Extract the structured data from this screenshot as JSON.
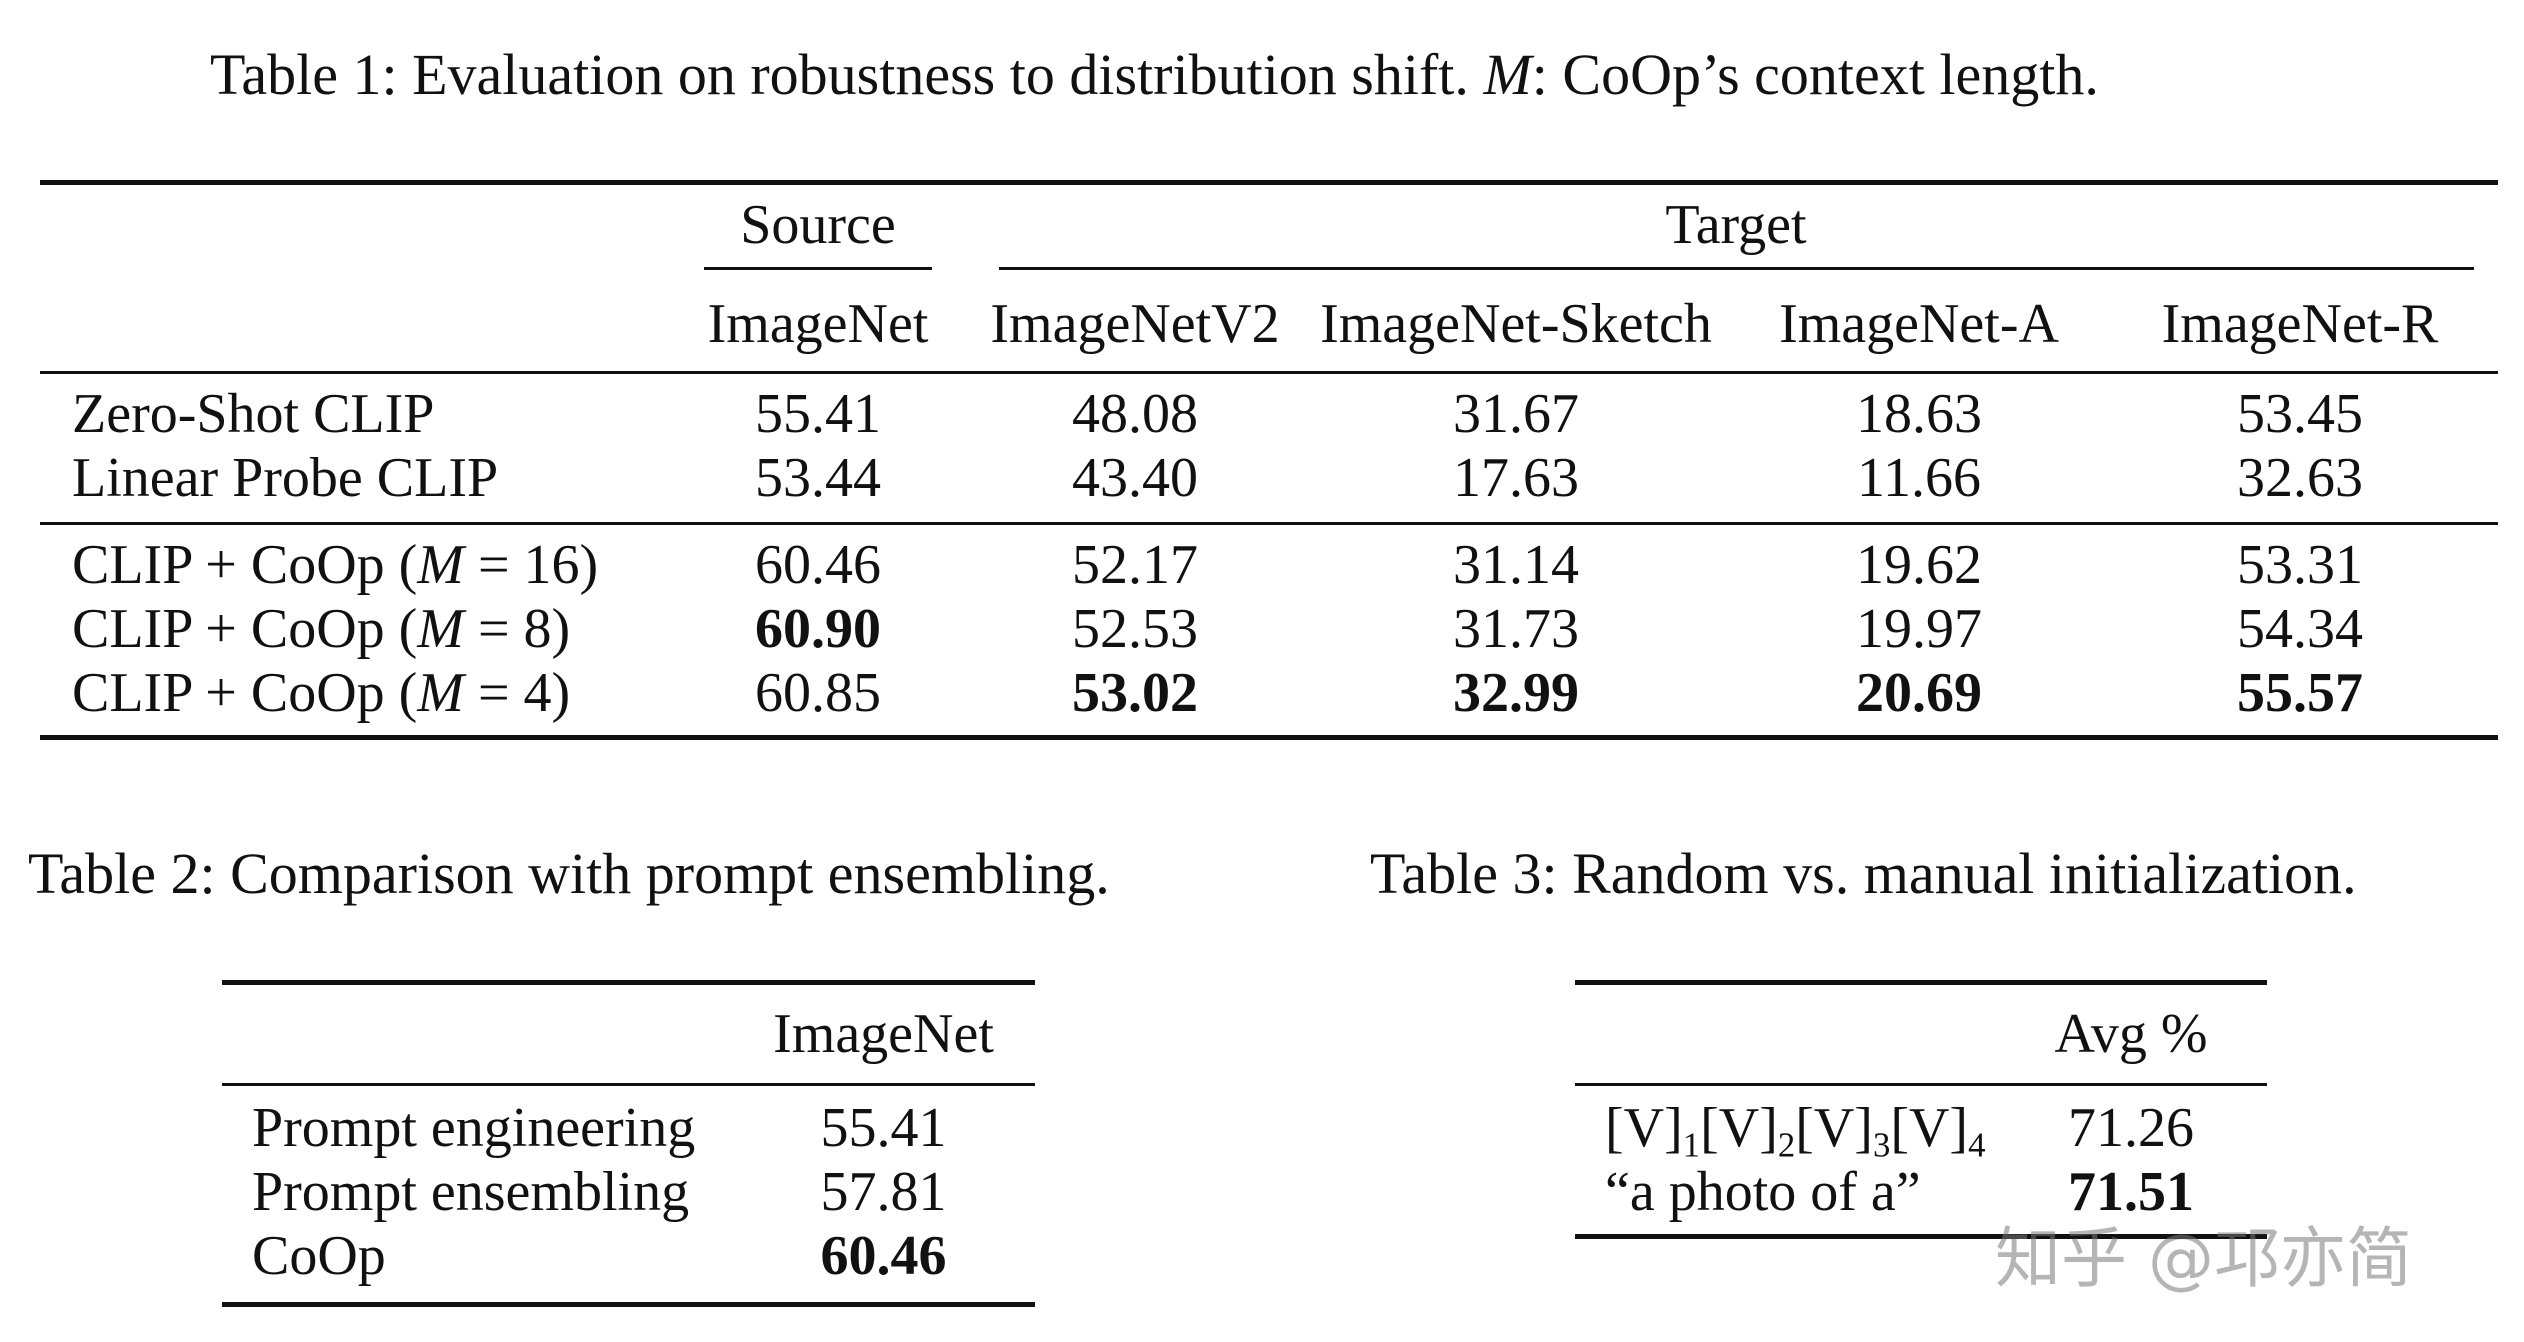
{
  "table1": {
    "caption_prefix": "Table 1: Evaluation on robustness to distribution shift. ",
    "caption_var": "M",
    "caption_suffix": ": CoOp’s context length.",
    "group_source": "Source",
    "group_target": "Target",
    "columns": [
      "ImageNet",
      "ImageNetV2",
      "ImageNet-Sketch",
      "ImageNet-A",
      "ImageNet-R"
    ],
    "rows": [
      {
        "pre": "Zero-Shot CLIP",
        "var": "",
        "post": "",
        "values": [
          "55.41",
          "48.08",
          "31.67",
          "18.63",
          "53.45"
        ]
      },
      {
        "pre": "Linear Probe CLIP",
        "var": "",
        "post": "",
        "values": [
          "53.44",
          "43.40",
          "17.63",
          "11.66",
          "32.63"
        ]
      },
      {
        "pre": "CLIP + CoOp (",
        "var": "M",
        "post": " = 16)",
        "values": [
          "60.46",
          "52.17",
          "31.14",
          "19.62",
          "53.31"
        ]
      },
      {
        "pre": "CLIP + CoOp (",
        "var": "M",
        "post": " = 8)",
        "values": [
          "60.90",
          "52.53",
          "31.73",
          "19.97",
          "54.34"
        ]
      },
      {
        "pre": "CLIP + CoOp (",
        "var": "M",
        "post": " = 4)",
        "values": [
          "60.85",
          "53.02",
          "32.99",
          "20.69",
          "55.57"
        ]
      }
    ],
    "bold_cells": [
      [
        3,
        0
      ],
      [
        4,
        1
      ],
      [
        4,
        2
      ],
      [
        4,
        3
      ],
      [
        4,
        4
      ]
    ]
  },
  "table2": {
    "caption": "Table 2: Comparison with prompt ensembling.",
    "column": "ImageNet",
    "rows": [
      {
        "label": "Prompt engineering",
        "value": "55.41"
      },
      {
        "label": "Prompt ensembling",
        "value": "57.81"
      },
      {
        "label": "CoOp",
        "value": "60.46",
        "bold": true
      }
    ]
  },
  "table3": {
    "caption": "Table 3: Random vs. manual initialization.",
    "column": "Avg %",
    "row1": {
      "tokens": [
        "[V]",
        "1",
        "[V]",
        "2",
        "[V]",
        "3",
        "[V]",
        "4"
      ],
      "value": "71.26"
    },
    "row2": {
      "label": "“a photo of a”",
      "value": "71.51",
      "bold": true
    }
  },
  "watermark": "知乎 @邛亦简"
}
